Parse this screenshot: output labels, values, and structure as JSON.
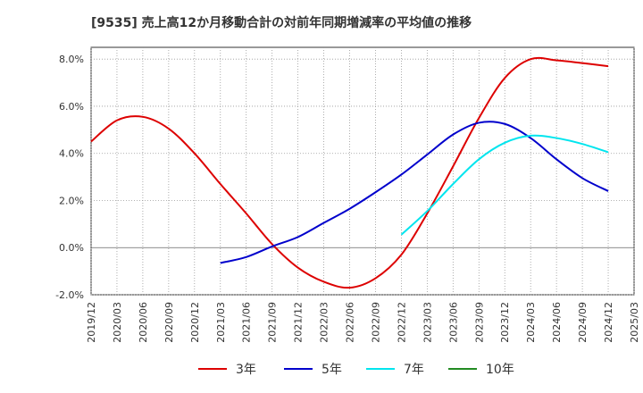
{
  "chart_data": {
    "type": "line",
    "title": "[9535]  売上高12か月移動合計の対前年同期増減率の平均値の推移",
    "xlabel": "",
    "ylabel": "",
    "ylim": [
      -2.0,
      8.5
    ],
    "y_ticks": [
      "-2.0%",
      "0.0%",
      "2.0%",
      "4.0%",
      "6.0%",
      "8.0%"
    ],
    "y_tick_values": [
      -2,
      0,
      2,
      4,
      6,
      8
    ],
    "x_ticks": [
      "2019/12",
      "2020/03",
      "2020/06",
      "2020/09",
      "2020/12",
      "2021/03",
      "2021/06",
      "2021/09",
      "2021/12",
      "2022/03",
      "2022/06",
      "2022/09",
      "2022/12",
      "2023/03",
      "2023/06",
      "2023/09",
      "2023/12",
      "2024/03",
      "2024/06",
      "2024/09",
      "2024/12",
      "2025/03"
    ],
    "grid": true,
    "legend_position": "bottom",
    "series": [
      {
        "name": "3年",
        "color": "#dd0000",
        "x": [
          "2019/12",
          "2020/03",
          "2020/06",
          "2020/09",
          "2020/12",
          "2021/03",
          "2021/06",
          "2021/09",
          "2021/12",
          "2022/03",
          "2022/06",
          "2022/09",
          "2022/12",
          "2023/03",
          "2023/06",
          "2023/09",
          "2023/12",
          "2024/03",
          "2024/06",
          "2024/09",
          "2024/12"
        ],
        "values": [
          4.5,
          5.4,
          5.55,
          5.05,
          4.0,
          2.7,
          1.45,
          0.15,
          -0.85,
          -1.45,
          -1.7,
          -1.3,
          -0.3,
          1.45,
          3.45,
          5.5,
          7.2,
          8.0,
          7.95,
          7.83,
          7.7
        ]
      },
      {
        "name": "5年",
        "color": "#0000cc",
        "x": [
          "2021/03",
          "2021/06",
          "2021/09",
          "2021/12",
          "2022/03",
          "2022/06",
          "2022/09",
          "2022/12",
          "2023/03",
          "2023/06",
          "2023/09",
          "2023/12",
          "2024/03",
          "2024/06",
          "2024/09",
          "2024/12"
        ],
        "values": [
          -0.65,
          -0.4,
          0.05,
          0.45,
          1.05,
          1.65,
          2.35,
          3.1,
          3.95,
          4.8,
          5.3,
          5.25,
          4.65,
          3.75,
          2.95,
          2.4
        ]
      },
      {
        "name": "7年",
        "color": "#00e5ee",
        "x": [
          "2022/12",
          "2023/03",
          "2023/06",
          "2023/09",
          "2023/12",
          "2024/03",
          "2024/06",
          "2024/09",
          "2024/12"
        ],
        "values": [
          0.55,
          1.55,
          2.7,
          3.75,
          4.45,
          4.75,
          4.65,
          4.4,
          4.05
        ]
      },
      {
        "name": "10年",
        "color": "#228b22",
        "x": [],
        "values": []
      }
    ]
  }
}
